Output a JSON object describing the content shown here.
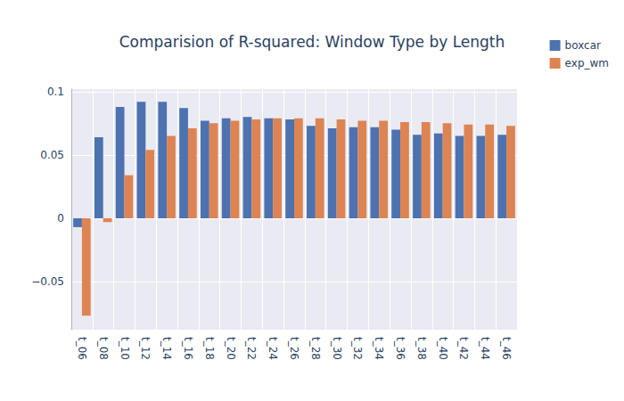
{
  "chart_data": {
    "type": "bar",
    "title": "Comparision of R-squared: Window Type by Length",
    "categories": [
      "t_06",
      "t_08",
      "t_10",
      "t_12",
      "t_14",
      "t_16",
      "t_18",
      "t_20",
      "t_22",
      "t_24",
      "t_26",
      "t_28",
      "t_30",
      "t_32",
      "t_34",
      "t_36",
      "t_38",
      "t_40",
      "t_42",
      "t_44",
      "t_46"
    ],
    "series": [
      {
        "name": "boxcar",
        "color": "#4C72B0",
        "values": [
          -0.007,
          0.064,
          0.088,
          0.092,
          0.092,
          0.087,
          0.077,
          0.079,
          0.08,
          0.079,
          0.078,
          0.073,
          0.071,
          0.072,
          0.072,
          0.07,
          0.066,
          0.067,
          0.065,
          0.065,
          0.066
        ]
      },
      {
        "name": "exp_wm",
        "color": "#DD8452",
        "values": [
          -0.077,
          -0.003,
          0.034,
          0.054,
          0.065,
          0.071,
          0.075,
          0.077,
          0.078,
          0.079,
          0.079,
          0.079,
          0.078,
          0.077,
          0.077,
          0.076,
          0.076,
          0.075,
          0.074,
          0.074,
          0.073
        ]
      }
    ],
    "ylim": [
      -0.088,
      0.102
    ],
    "yticks": [
      {
        "value": -0.05,
        "label": "−0.05"
      },
      0,
      0.05,
      0.1
    ],
    "grid": true,
    "legend": "top-right"
  }
}
